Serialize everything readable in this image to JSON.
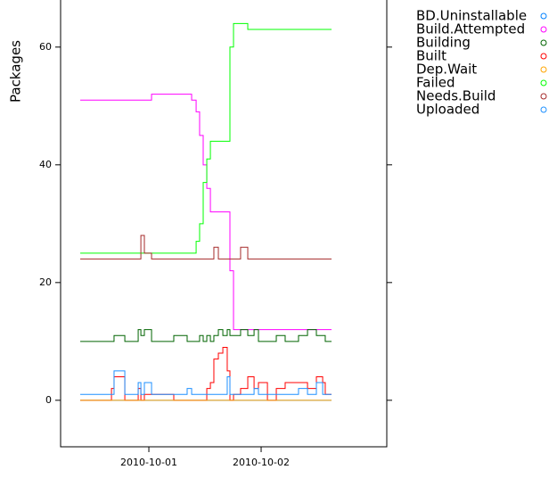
{
  "chart_data": {
    "type": "line",
    "y_label": "Packages",
    "x": [
      -0.611,
      -0.333,
      -0.31,
      -0.214,
      -0.095,
      -0.071,
      -0.04,
      0.024,
      0.222,
      0.341,
      0.381,
      0.421,
      0.452,
      0.484,
      0.516,
      0.548,
      0.579,
      0.619,
      0.659,
      0.698,
      0.722,
      0.754,
      0.817,
      0.881,
      0.937,
      0.976,
      1.056,
      1.135,
      1.214,
      1.333,
      1.413,
      1.492,
      1.548,
      1.571,
      1.627
    ],
    "xlim": [
      -0.786,
      2.119
    ],
    "xticks": [
      {
        "value": 0,
        "label": "2010-10-01"
      },
      {
        "value": 1,
        "label": "2010-10-02"
      }
    ],
    "ylim": [
      -7.9,
      68
    ],
    "yticks": [
      0,
      20,
      40,
      60
    ],
    "series": [
      {
        "name": "BD.Uninstallable",
        "color": "#0080ff",
        "values": [
          0,
          0,
          0,
          0,
          0,
          0,
          0,
          0,
          0,
          0,
          0,
          0,
          0,
          0,
          0,
          0,
          0,
          0,
          0,
          0,
          0,
          0,
          0,
          0,
          0,
          0,
          0,
          0,
          0,
          0,
          0,
          0,
          0,
          0,
          0
        ]
      },
      {
        "name": "Build.Attempted",
        "color": "#ff00ff",
        "values": [
          51,
          51,
          51,
          51,
          51,
          51,
          51,
          52,
          52,
          52,
          51,
          49,
          45,
          40,
          36,
          32,
          32,
          32,
          32,
          32,
          22,
          12,
          12,
          12,
          12,
          12,
          12,
          12,
          12,
          12,
          12,
          12,
          12,
          12,
          12
        ]
      },
      {
        "name": "Building",
        "color": "#006400",
        "values": [
          10,
          10,
          11,
          10,
          12,
          11,
          12,
          10,
          11,
          10,
          10,
          10,
          11,
          10,
          11,
          10,
          11,
          12,
          11,
          12,
          11,
          11,
          12,
          11,
          12,
          10,
          10,
          11,
          10,
          11,
          12,
          11,
          11,
          10,
          10
        ]
      },
      {
        "name": "Built",
        "color": "#ff0000",
        "values": [
          0,
          2,
          4,
          0,
          2,
          0,
          1,
          1,
          0,
          0,
          0,
          0,
          0,
          0,
          2,
          3,
          7,
          8,
          9,
          5,
          0,
          1,
          2,
          4,
          2,
          3,
          0,
          2,
          3,
          3,
          2,
          4,
          3,
          1,
          1
        ]
      },
      {
        "name": "Dep.Wait",
        "color": "#ffa500",
        "values": [
          0,
          0,
          0,
          0,
          0,
          0,
          0,
          0,
          0,
          0,
          0,
          0,
          0,
          0,
          0,
          0,
          0,
          0,
          0,
          0,
          0,
          0,
          0,
          0,
          0,
          0,
          0,
          0,
          0,
          0,
          0,
          0,
          0,
          0,
          0
        ]
      },
      {
        "name": "Failed",
        "color": "#00ff00",
        "values": [
          25,
          25,
          25,
          25,
          25,
          25,
          25,
          25,
          25,
          25,
          25,
          27,
          30,
          37,
          41,
          44,
          44,
          44,
          44,
          44,
          60,
          64,
          64,
          63,
          63,
          63,
          63,
          63,
          63,
          63,
          63,
          63,
          63,
          63,
          63
        ]
      },
      {
        "name": "Needs.Build",
        "color": "#a52a2a",
        "values": [
          24,
          24,
          24,
          24,
          24,
          28,
          25,
          24,
          24,
          24,
          24,
          24,
          24,
          24,
          24,
          24,
          26,
          24,
          24,
          24,
          24,
          24,
          26,
          24,
          24,
          24,
          24,
          24,
          24,
          24,
          24,
          24,
          24,
          24,
          24
        ]
      },
      {
        "name": "Uploaded",
        "color": "#1e90ff",
        "values": [
          1,
          1,
          5,
          1,
          3,
          1,
          3,
          1,
          1,
          2,
          1,
          1,
          1,
          1,
          1,
          1,
          1,
          1,
          1,
          4,
          1,
          1,
          1,
          1,
          2,
          1,
          1,
          1,
          1,
          2,
          1,
          3,
          1,
          1,
          1
        ]
      }
    ]
  }
}
